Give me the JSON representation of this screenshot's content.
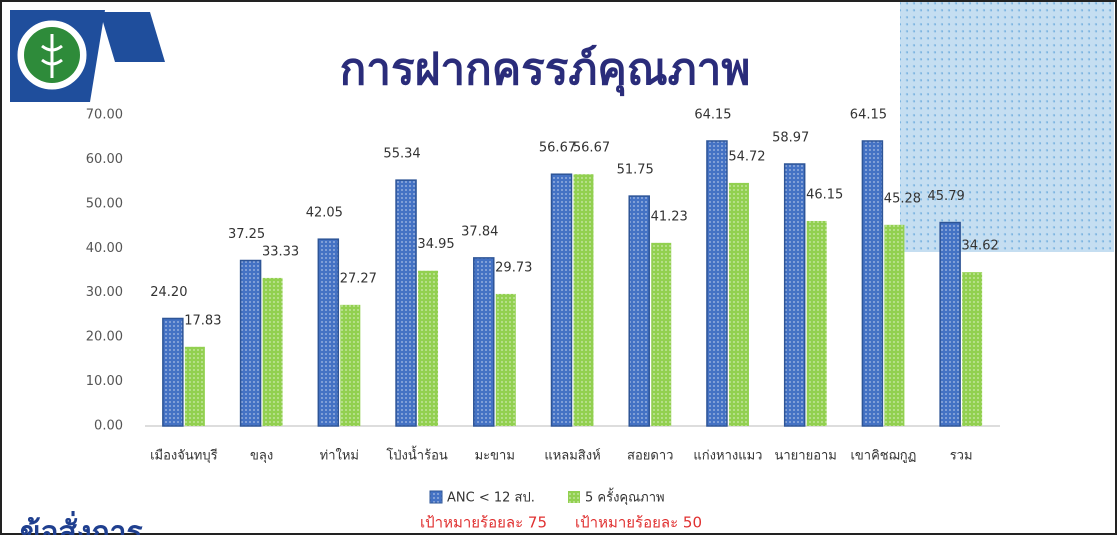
{
  "chart_data": {
    "type": "bar",
    "title": "การฝากครรภ์คุณภาพ",
    "subtitle": "ข้อสั่งการ",
    "categories": [
      "เมืองจันทบุรี",
      "ขลุง",
      "ท่าใหม่",
      "โป่งน้ำร้อน",
      "มะขาม",
      "แหลมสิงห์",
      "สอยดาว",
      "แก่งหางแมว",
      "นายายอาม",
      "เขาคิชฌกูฏ",
      "รวม"
    ],
    "series": [
      {
        "name": "ANC < 12 สป.",
        "color": "#4472c4",
        "values": [
          24.2,
          37.25,
          42.05,
          55.34,
          37.84,
          56.67,
          51.75,
          64.15,
          58.97,
          64.15,
          45.79
        ],
        "value_labels": [
          "24.20",
          "37.25",
          "42.05",
          "55.34",
          "37.84",
          "56.67",
          "51.75",
          "64.15",
          "58.97",
          "64.15",
          "45.79"
        ]
      },
      {
        "name": "5 ครั้งคุณภาพ",
        "color": "#92d050",
        "values": [
          17.83,
          33.33,
          27.27,
          34.95,
          29.73,
          56.67,
          41.23,
          54.72,
          46.15,
          45.28,
          34.62
        ],
        "value_labels": [
          "17.83",
          "33.33",
          "27.27",
          "34.95",
          "29.73",
          "56.67",
          "41.23",
          "54.72",
          "46.15",
          "45.28",
          "34.62"
        ]
      }
    ],
    "annotations": [
      "เป้าหมายร้อยละ 75",
      "เป้าหมายร้อยละ 50"
    ],
    "ylim": [
      0,
      70
    ],
    "yticks": [
      {
        "value": 0,
        "label": "0.00"
      },
      {
        "value": 10,
        "label": "10.00"
      },
      {
        "value": 20,
        "label": "20.00"
      },
      {
        "value": 30,
        "label": "30.00"
      },
      {
        "value": 40,
        "label": "40.00"
      },
      {
        "value": 50,
        "label": "50.00"
      },
      {
        "value": 60,
        "label": "60.00"
      },
      {
        "value": 70,
        "label": "70.00"
      }
    ],
    "grid": false,
    "legend": "bottom"
  }
}
